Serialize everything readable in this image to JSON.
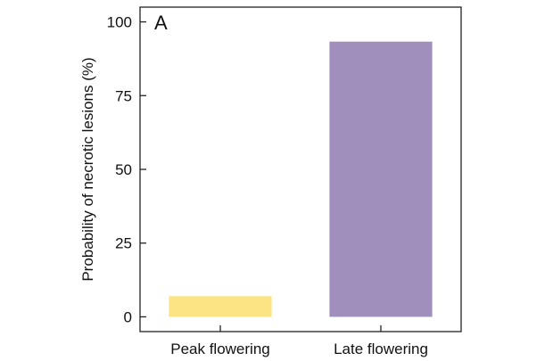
{
  "chart_data": {
    "type": "bar",
    "panel_label": "A",
    "categories": [
      "Peak flowering",
      "Late flowering"
    ],
    "values": [
      7,
      93.3
    ],
    "colors": [
      "#fce384",
      "#a08ebd"
    ],
    "title": "",
    "xlabel": "",
    "ylabel": "Probability of necrotic lesions (%)",
    "ylim": [
      -5,
      105
    ],
    "yticks": [
      0,
      25,
      50,
      75,
      100
    ],
    "ytick_labels": [
      "0",
      "25",
      "50",
      "75",
      "100"
    ],
    "grid": false
  }
}
